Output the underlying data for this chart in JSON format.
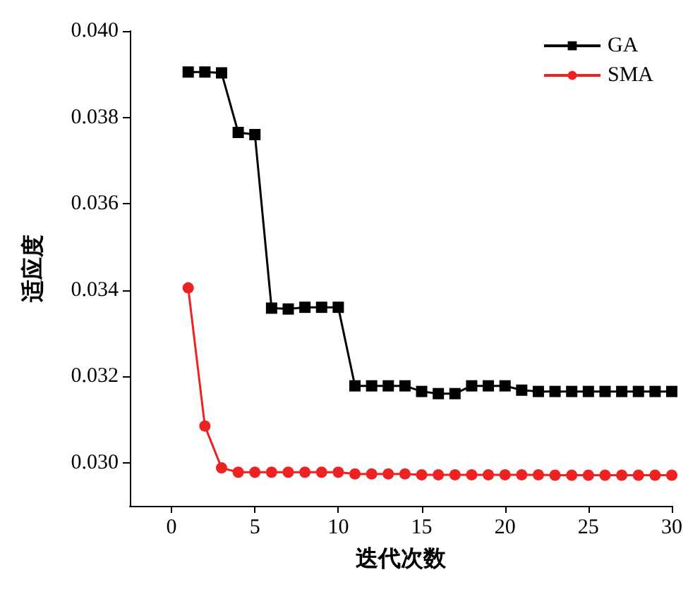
{
  "chart_data": {
    "type": "line",
    "xlabel": "迭代次数",
    "ylabel": "适应度",
    "x": [
      1,
      2,
      3,
      4,
      5,
      6,
      7,
      8,
      9,
      10,
      11,
      12,
      13,
      14,
      15,
      16,
      17,
      18,
      19,
      20,
      21,
      22,
      23,
      24,
      25,
      26,
      27,
      28,
      29,
      30
    ],
    "series": [
      {
        "name": "GA",
        "color": "#000000",
        "marker": "square",
        "values": [
          0.03905,
          0.03905,
          0.03903,
          0.03765,
          0.0376,
          0.03358,
          0.03356,
          0.0336,
          0.0336,
          0.0336,
          0.03178,
          0.03178,
          0.03178,
          0.03178,
          0.03165,
          0.0316,
          0.0316,
          0.03178,
          0.03178,
          0.03178,
          0.03168,
          0.03165,
          0.03165,
          0.03165,
          0.03165,
          0.03165,
          0.03165,
          0.03165,
          0.03165,
          0.03165
        ]
      },
      {
        "name": "SMA",
        "color": "#ee2222",
        "marker": "circle",
        "values": [
          0.03405,
          0.03085,
          0.02988,
          0.02978,
          0.02978,
          0.02978,
          0.02978,
          0.02978,
          0.02978,
          0.02978,
          0.02974,
          0.02974,
          0.02974,
          0.02974,
          0.02972,
          0.02972,
          0.02972,
          0.02972,
          0.02972,
          0.02972,
          0.02972,
          0.02972,
          0.02971,
          0.02971,
          0.02971,
          0.02971,
          0.02971,
          0.02971,
          0.02971,
          0.02971
        ]
      }
    ],
    "xlim": [
      -2.5,
      30
    ],
    "xticks": [
      0,
      5,
      10,
      15,
      20,
      25,
      30
    ],
    "ylim": [
      0.029,
      0.04
    ],
    "yticks": [
      {
        "value": 0.03,
        "label": "0.030"
      },
      0.032,
      0.034,
      0.036,
      0.038,
      {
        "value": 0.04,
        "label": "0.040"
      }
    ],
    "grid": false,
    "legend": "top right",
    "line_style": "solid"
  }
}
